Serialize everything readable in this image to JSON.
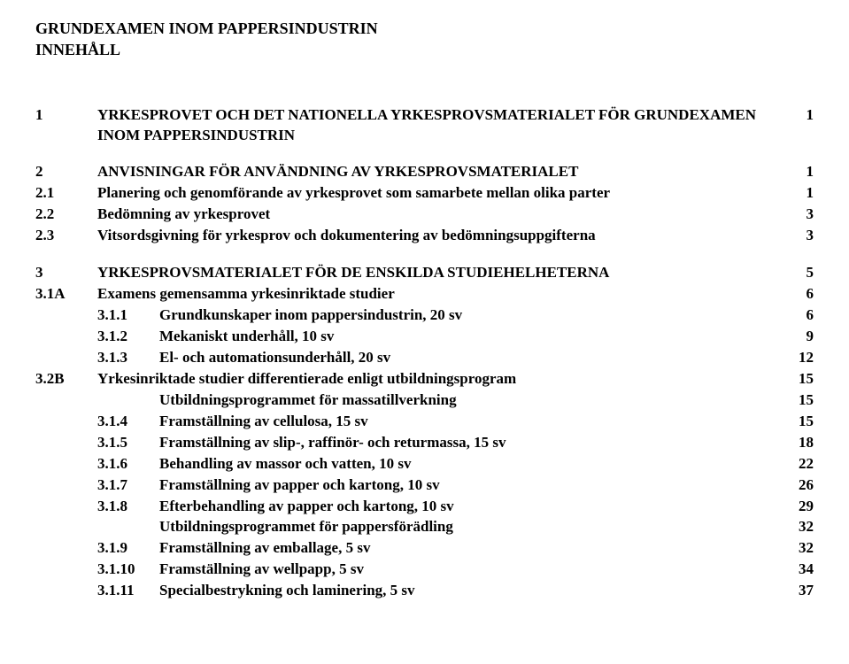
{
  "title1": "GRUNDEXAMEN INOM PAPPERSINDUSTRIN",
  "title2": "INNEHÅLL",
  "toc": [
    {
      "num": "1",
      "text": "YRKESPROVET OCH DET NATIONELLA YRKESPROVSMATERIALET FÖR GRUNDEXAMEN INOM PAPPERSINDUSTRIN",
      "page": "1",
      "indent": 1,
      "spaceAfter": true
    },
    {
      "num": "2",
      "text": "ANVISNINGAR FÖR ANVÄNDNING AV YRKESPROVSMATERIALET",
      "page": "1",
      "indent": 1
    },
    {
      "num": "2.1",
      "text": "Planering och genomförande av yrkesprovet som samarbete mellan olika parter",
      "page": "1",
      "indent": 1
    },
    {
      "num": "2.2",
      "text": "Bedömning av yrkesprovet",
      "page": "3",
      "indent": 1
    },
    {
      "num": "2.3",
      "text": "Vitsordsgivning för yrkesprov och dokumentering av bedömningsuppgifterna",
      "page": "3",
      "indent": 1,
      "spaceAfter": true
    },
    {
      "num": "3",
      "text": "YRKESPROVSMATERIALET FÖR DE ENSKILDA STUDIEHELHETERNA",
      "page": "5",
      "indent": 1
    },
    {
      "num": "3.1A",
      "text": "Examens gemensamma yrkesinriktade studier",
      "page": "6",
      "indent": 1
    },
    {
      "num": "3.1.1",
      "text": "Grundkunskaper inom pappersindustrin, 20 sv",
      "page": "6",
      "indent": 2
    },
    {
      "num": "3.1.2",
      "text": "Mekaniskt underhåll, 10 sv",
      "page": "9",
      "indent": 2
    },
    {
      "num": "3.1.3",
      "text": "El- och automationsunderhåll, 20 sv",
      "page": "12",
      "indent": 2
    },
    {
      "num": "3.2B",
      "text": "Yrkesinriktade studier differentierade enligt utbildningsprogram",
      "page": "15",
      "indent": 1
    },
    {
      "num": "",
      "text": "Utbildningsprogrammet för massatillverkning",
      "page": "15",
      "indent": 2
    },
    {
      "num": "3.1.4",
      "text": "Framställning av cellulosa, 15 sv",
      "page": "15",
      "indent": 2
    },
    {
      "num": "3.1.5",
      "text": "Framställning av slip-, raffinör- och returmassa, 15 sv",
      "page": "18",
      "indent": 2
    },
    {
      "num": "3.1.6",
      "text": "Behandling av massor och vatten, 10 sv",
      "page": "22",
      "indent": 2
    },
    {
      "num": "3.1.7",
      "text": "Framställning av papper och kartong, 10 sv",
      "page": "26",
      "indent": 2
    },
    {
      "num": "3.1.8",
      "text": "Efterbehandling av papper och kartong, 10 sv",
      "page": "29",
      "indent": 2
    },
    {
      "num": "",
      "text": "Utbildningsprogrammet för pappersförädling",
      "page": "32",
      "indent": 2
    },
    {
      "num": "3.1.9",
      "text": "Framställning av emballage, 5 sv",
      "page": "32",
      "indent": 2
    },
    {
      "num": "3.1.10",
      "text": "Framställning av wellpapp, 5 sv",
      "page": "34",
      "indent": 2
    },
    {
      "num": "3.1.11",
      "text": "Specialbestrykning och laminering, 5 sv",
      "page": "37",
      "indent": 2
    }
  ]
}
